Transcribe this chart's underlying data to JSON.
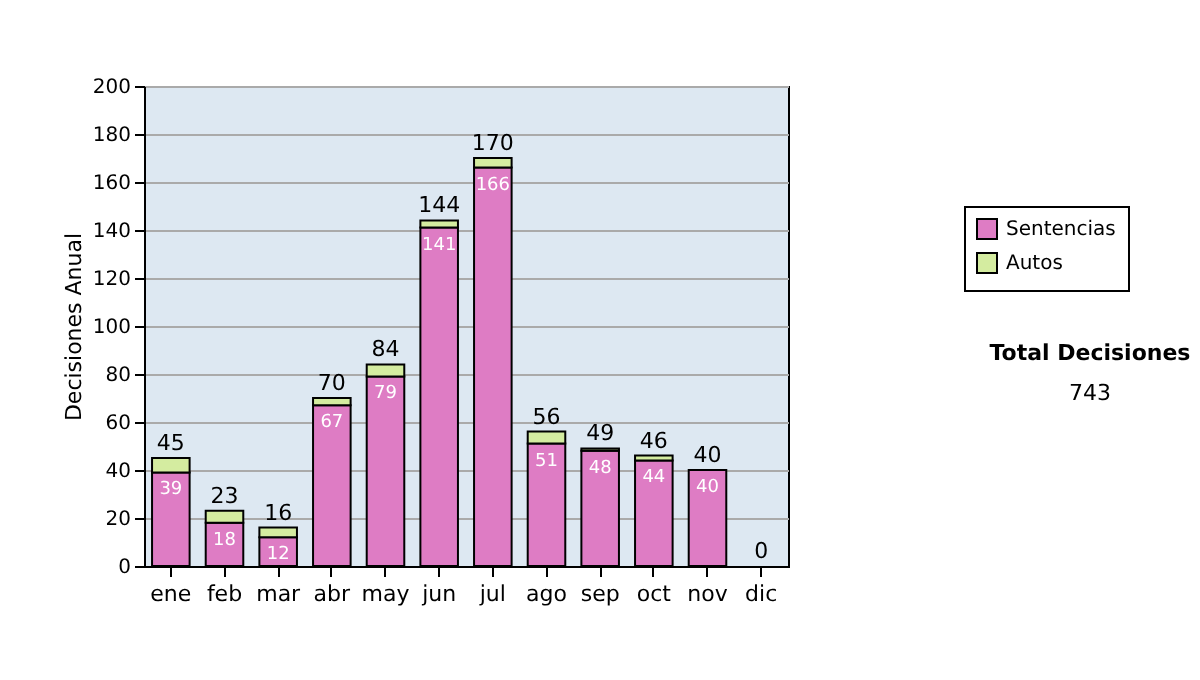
{
  "chart_data": {
    "type": "bar",
    "stacked": true,
    "ylabel": "Decisiones Anual",
    "categories": [
      "ene",
      "feb",
      "mar",
      "abr",
      "may",
      "jun",
      "jul",
      "ago",
      "sep",
      "oct",
      "nov",
      "dic"
    ],
    "series": [
      {
        "name": "Sentencias",
        "color": "#de7cc4",
        "values": [
          39,
          18,
          12,
          67,
          79,
          141,
          166,
          51,
          48,
          44,
          40,
          0
        ],
        "value_labels": [
          "39",
          "18",
          "12",
          "67",
          "79",
          "141",
          "166",
          "51",
          "48",
          "44",
          "40",
          null
        ]
      },
      {
        "name": "Autos",
        "color": "#d4eca0",
        "values": [
          6,
          5,
          4,
          3,
          5,
          3,
          4,
          5,
          1,
          2,
          0,
          0
        ]
      }
    ],
    "totals": [
      "45",
      "23",
      "16",
      "70",
      "84",
      "144",
      "170",
      "56",
      "49",
      "46",
      "40",
      "0"
    ],
    "ylim": [
      0,
      200
    ],
    "yticks": [
      0,
      20,
      40,
      60,
      80,
      100,
      120,
      140,
      160,
      180,
      200
    ],
    "grid": "y",
    "legend": "right",
    "annotations": [
      "Total Decisiones",
      "743"
    ]
  }
}
